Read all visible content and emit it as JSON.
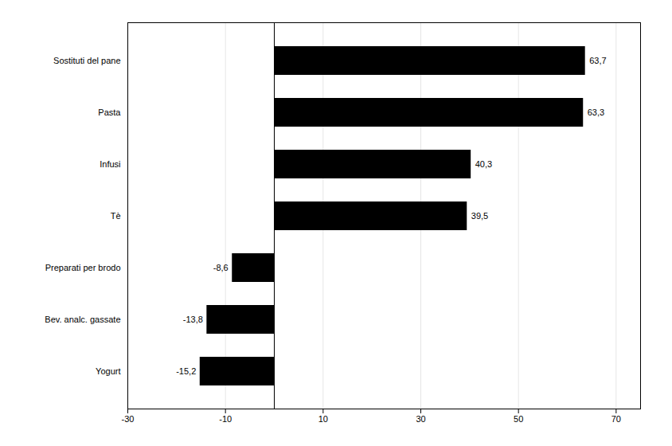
{
  "chart_data": {
    "type": "bar",
    "orientation": "horizontal",
    "categories": [
      "Sostituti del pane",
      "Pasta",
      "Infusi",
      "Tè",
      "Preparati per brodo",
      "Bev. analc. gassate",
      "Yogurt"
    ],
    "values": [
      63.7,
      63.3,
      40.3,
      39.5,
      -8.6,
      -13.8,
      -15.2
    ],
    "value_labels": [
      "63,7",
      "63,3",
      "40,3",
      "39,5",
      "-8,6",
      "-13,8",
      "-15,2"
    ],
    "data_labels": true,
    "xlim": [
      -30,
      75
    ],
    "xticks": [
      -30,
      -10,
      10,
      30,
      50,
      70
    ],
    "grid": true
  }
}
